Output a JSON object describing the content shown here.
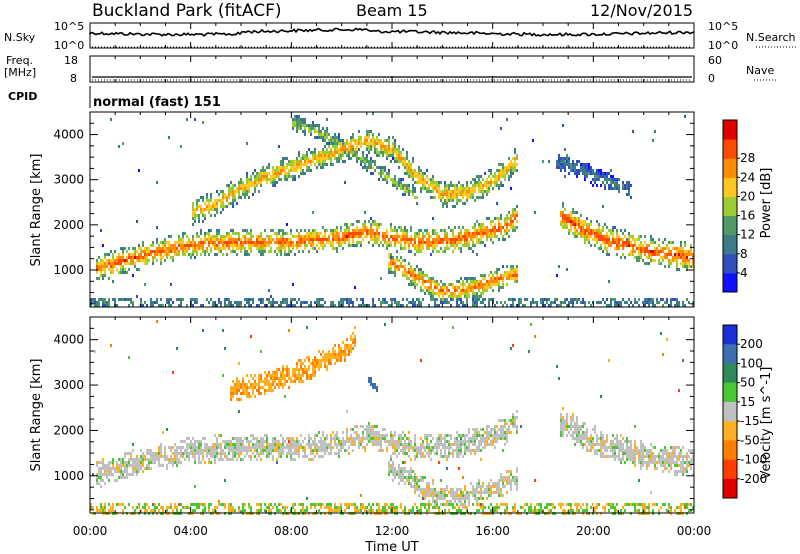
{
  "header": {
    "station": "Buckland Park (fitACF)",
    "beam": "Beam 15",
    "date": "12/Nov/2015"
  },
  "noise_panel": {
    "left_label": "N.Sky",
    "left_ticks": [
      "10^5",
      "10^0"
    ],
    "right_ticks": [
      "10^5",
      "10^0"
    ],
    "right_label": "N.Search"
  },
  "freq_panel": {
    "label_line1": "Freq.",
    "label_line2": "[MHz]",
    "left_ticks": [
      "18",
      "8"
    ],
    "right_ticks": [
      "60",
      "0"
    ],
    "right_label": "Nave"
  },
  "cpid": {
    "label": "CPID",
    "mode": "normal (fast) 151"
  },
  "chart_data": [
    {
      "type": "heatmap",
      "title": "Power",
      "ylabel": "Slant Range [km]",
      "xlabel": "",
      "ylim": [
        180,
        4500
      ],
      "yticks": [
        1000,
        2000,
        3000,
        4000
      ],
      "xlim": [
        0,
        24
      ],
      "colorbar": {
        "label": "Power [dB]",
        "ticks": [
          "4",
          "8",
          "12",
          "16",
          "20",
          "24",
          "28"
        ],
        "colors": [
          "#1010ff",
          "#3050c0",
          "#3d7a8a",
          "#4f9a68",
          "#9acd32",
          "#ffc820",
          "#ff8c00",
          "#ff4a00",
          "#e00000"
        ]
      },
      "echo_bands": [
        {
          "name": "",
          "points": [
            [
              0.2,
              1050
            ],
            [
              2,
              1350
            ],
            [
              4,
              1600
            ],
            [
              6,
              1650
            ],
            [
              8,
              1650
            ],
            [
              10,
              1750
            ],
            [
              11,
              1900
            ],
            [
              12,
              1750
            ],
            [
              13,
              1650
            ],
            [
              14.5,
              1700
            ],
            [
              15.5,
              1850
            ],
            [
              16.5,
              2000
            ],
            [
              17,
              2250
            ]
          ],
          "width": 230,
          "peak": 26
        },
        {
          "name": "",
          "points": [
            [
              4,
              2300
            ],
            [
              5,
              2500
            ],
            [
              6,
              2850
            ],
            [
              7,
              3100
            ],
            [
              8,
              3300
            ],
            [
              9,
              3500
            ],
            [
              10,
              3700
            ],
            [
              11,
              3900
            ],
            [
              12,
              3700
            ],
            [
              13,
              3100
            ],
            [
              14,
              2700
            ],
            [
              15,
              2750
            ],
            [
              16,
              3000
            ],
            [
              17,
              3500
            ]
          ],
          "width": 220,
          "peak": 22
        },
        {
          "name": "",
          "points": [
            [
              11.8,
              1250
            ],
            [
              13,
              850
            ],
            [
              14,
              550
            ],
            [
              15,
              600
            ],
            [
              16,
              800
            ],
            [
              17,
              950
            ]
          ],
          "width": 200,
          "peak": 25
        },
        {
          "name": "",
          "points": [
            [
              8,
              4300
            ],
            [
              9,
              4100
            ],
            [
              10,
              3800
            ],
            [
              11,
              3400
            ],
            [
              12,
              3000
            ],
            [
              13,
              2650
            ]
          ],
          "width": 150,
          "peak": 16
        },
        {
          "name": "",
          "points": [
            [
              18.6,
              2250
            ],
            [
              19.5,
              1950
            ],
            [
              20.5,
              1700
            ],
            [
              21.5,
              1550
            ],
            [
              22.5,
              1420
            ],
            [
              24,
              1300
            ]
          ],
          "width": 250,
          "peak": 27
        },
        {
          "name": "",
          "points": [
            [
              18.5,
              3450
            ],
            [
              19.5,
              3250
            ],
            [
              20.5,
              3000
            ],
            [
              21.5,
              2800
            ]
          ],
          "width": 150,
          "peak": 10
        }
      ]
    },
    {
      "type": "heatmap",
      "title": "Velocity",
      "ylabel": "Slant Range [km]",
      "xlabel": "Time UT",
      "ylim": [
        180,
        4500
      ],
      "yticks": [
        1000,
        2000,
        3000,
        4000
      ],
      "xlim": [
        0,
        24
      ],
      "xticks": [
        "00:00",
        "04:00",
        "08:00",
        "12:00",
        "16:00",
        "20:00",
        "00:00"
      ],
      "colorbar": {
        "label": "Velocity [m s^-1]",
        "ticks": [
          "200",
          "100",
          "50",
          "15",
          "-15",
          "-50",
          "-100",
          "-200"
        ],
        "colors": [
          "#1a2ed4",
          "#3b6fb0",
          "#2e8b57",
          "#48c832",
          "#c0c0c0",
          "#ffb020",
          "#ff8000",
          "#ff4000",
          "#e00000"
        ]
      },
      "echo_bands": [
        {
          "name": "",
          "points": [
            [
              0.2,
              1050
            ],
            [
              2,
              1350
            ],
            [
              4,
              1600
            ],
            [
              6,
              1650
            ],
            [
              8,
              1650
            ],
            [
              10,
              1750
            ],
            [
              11,
              1900
            ],
            [
              12,
              1750
            ],
            [
              13,
              1650
            ],
            [
              14.5,
              1700
            ],
            [
              15.5,
              1850
            ],
            [
              16.5,
              2000
            ],
            [
              17,
              2250
            ]
          ],
          "width": 230,
          "velocity": 0
        },
        {
          "name": "",
          "points": [
            [
              5.5,
              2900
            ],
            [
              7,
              3100
            ],
            [
              8,
              3250
            ],
            [
              9,
              3500
            ],
            [
              10,
              3750
            ],
            [
              10.5,
              4050
            ]
          ],
          "width": 200,
          "velocity": -40
        },
        {
          "name": "",
          "points": [
            [
              11,
              3150
            ],
            [
              11.4,
              2900
            ]
          ],
          "width": 100,
          "velocity": 150
        },
        {
          "name": "",
          "points": [
            [
              11.8,
              1250
            ],
            [
              13,
              850
            ],
            [
              14,
              550
            ],
            [
              15,
              600
            ],
            [
              16,
              800
            ],
            [
              17,
              950
            ]
          ],
          "width": 200,
          "velocity": 0
        },
        {
          "name": "",
          "points": [
            [
              18.6,
              2250
            ],
            [
              19.5,
              1950
            ],
            [
              20.5,
              1700
            ],
            [
              21.5,
              1550
            ],
            [
              22.5,
              1420
            ],
            [
              24,
              1300
            ]
          ],
          "width": 250,
          "velocity": 0
        }
      ]
    }
  ]
}
